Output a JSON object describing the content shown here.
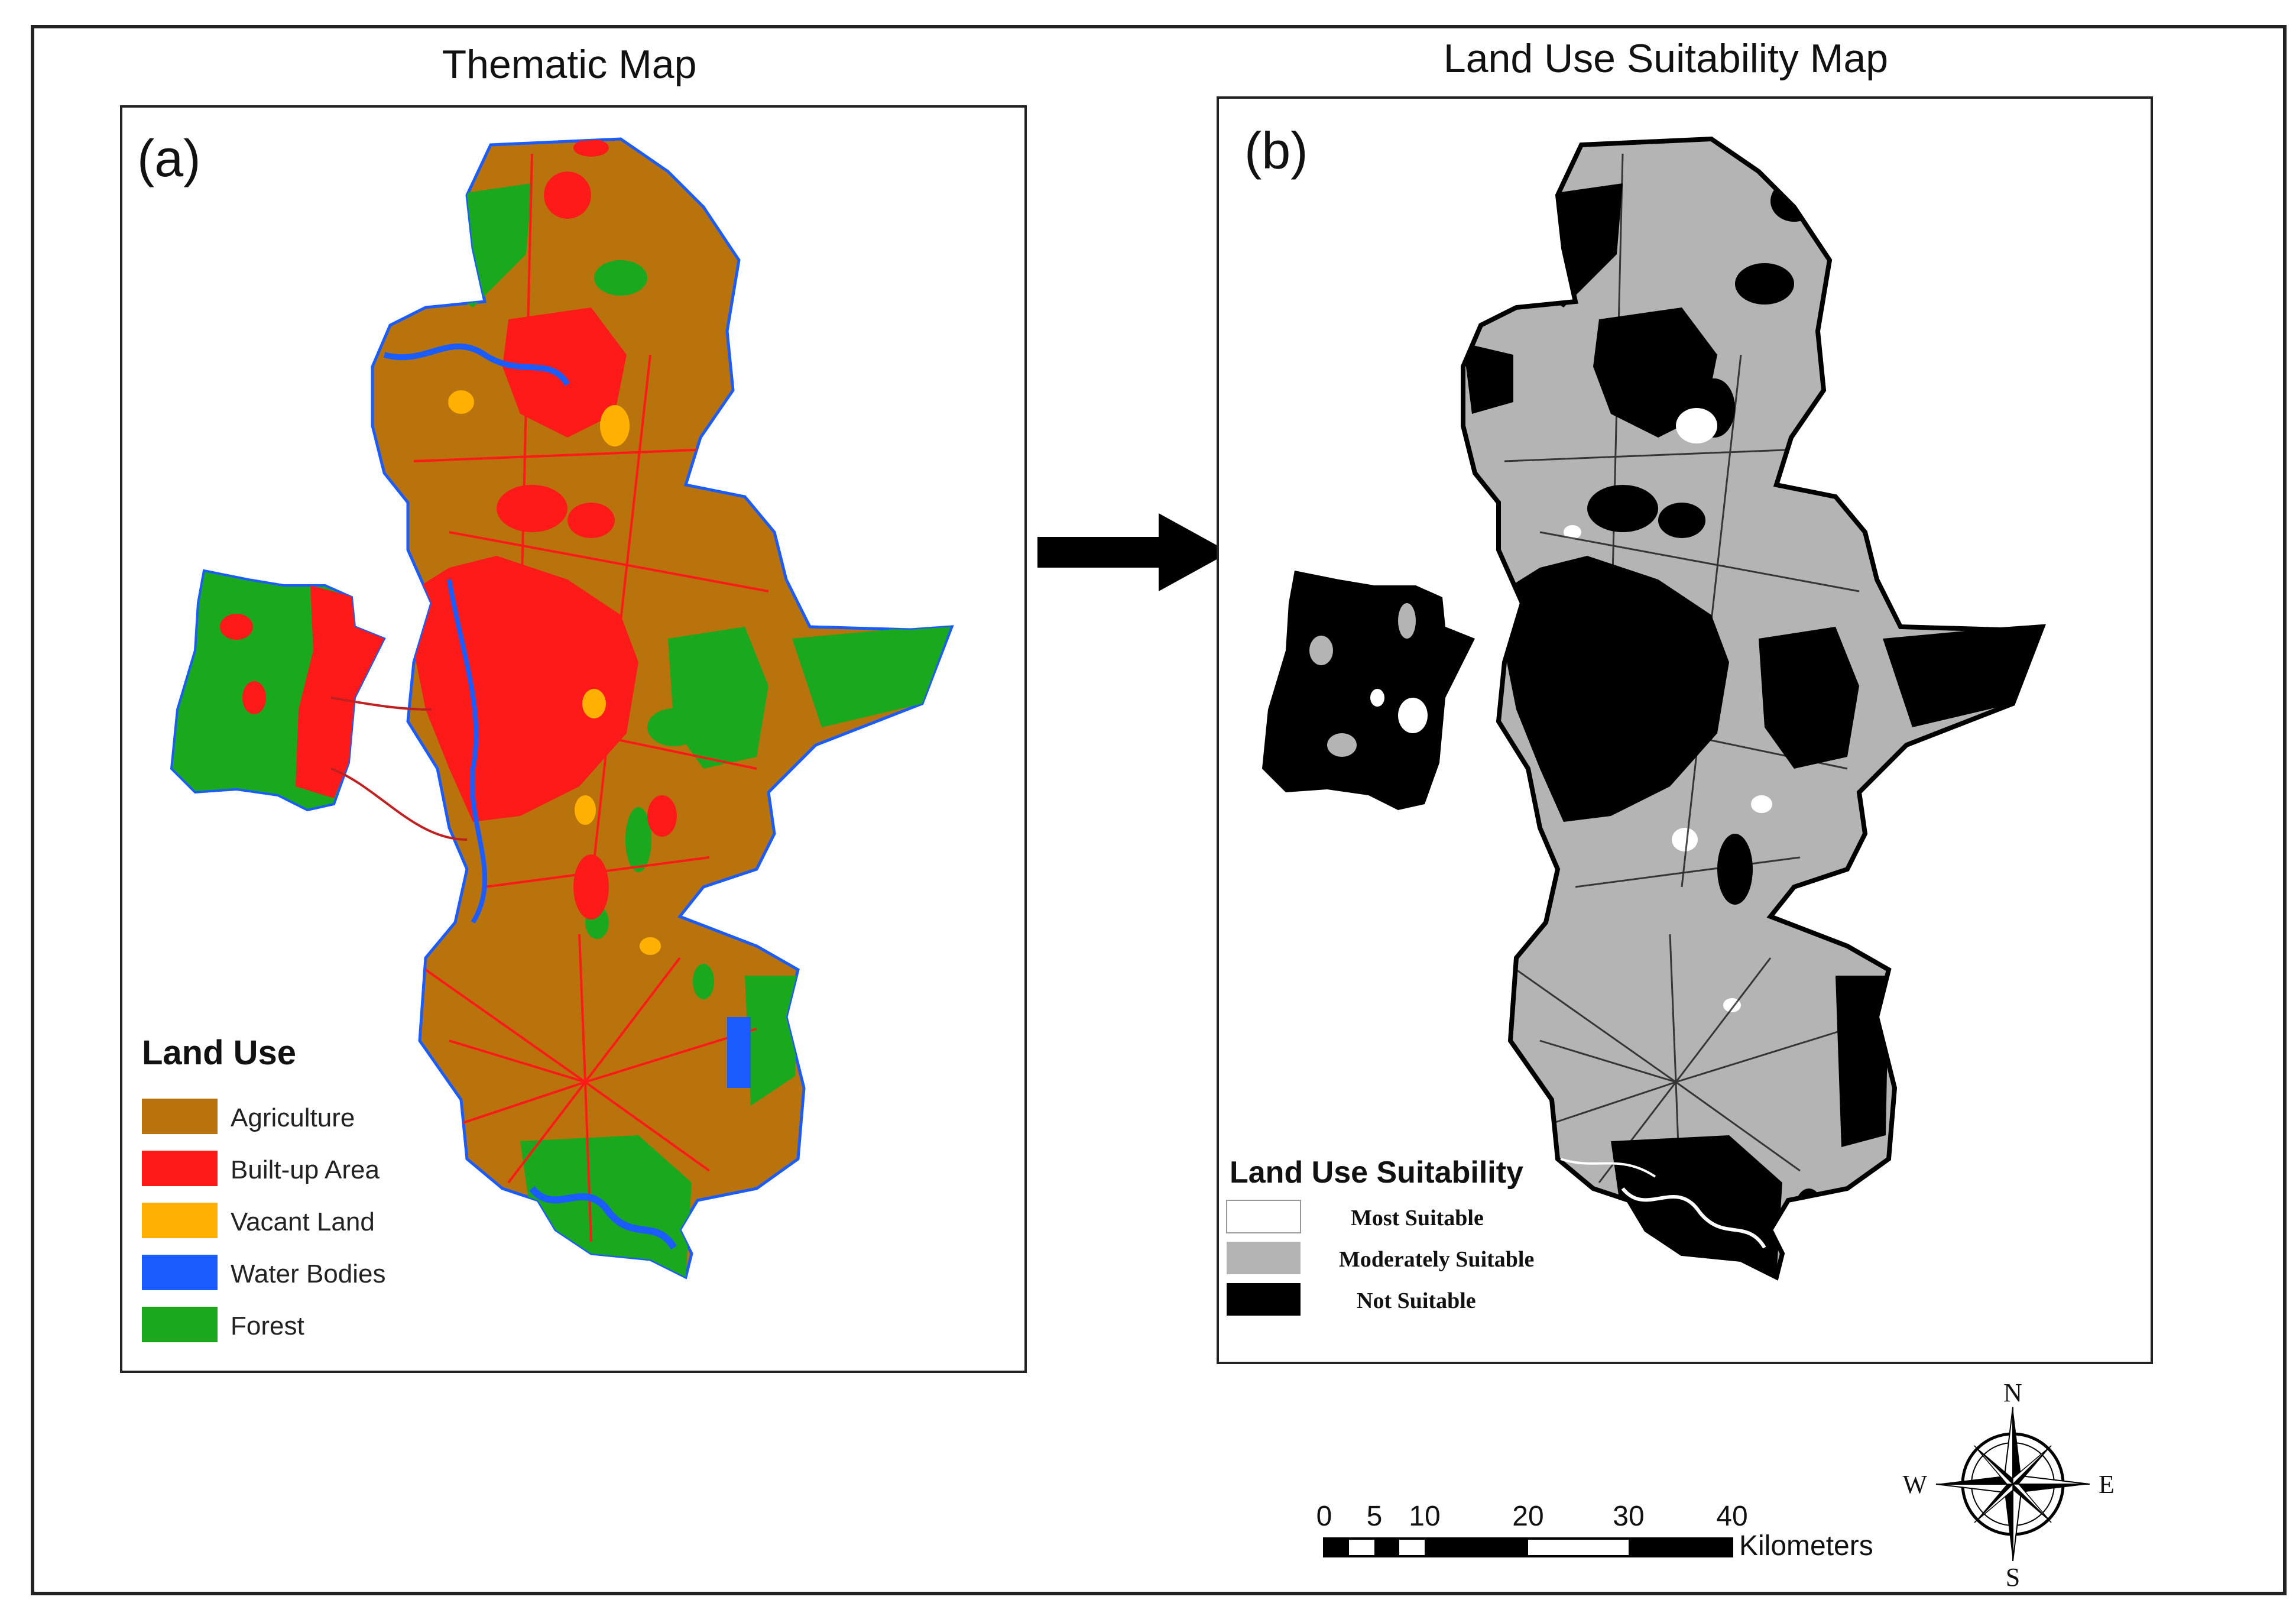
{
  "panels": {
    "left_title": "Thematic Map",
    "right_title": "Land Use Suitability Map",
    "left_label": "(a)",
    "right_label": "(b)"
  },
  "legend_land_use": {
    "title": "Land Use",
    "items": [
      {
        "label": "Agriculture",
        "color": "#b8730d"
      },
      {
        "label": "Built-up Area",
        "color": "#ff1a1a"
      },
      {
        "label": "Vacant Land",
        "color": "#ffb000"
      },
      {
        "label": "Water Bodies",
        "color": "#1a5cff"
      },
      {
        "label": "Forest",
        "color": "#19a81e"
      }
    ]
  },
  "legend_suitability": {
    "title": "Land Use Suitability",
    "items": [
      {
        "label": "Most Suitable",
        "color": "#ffffff"
      },
      {
        "label": "Moderately Suitable",
        "color": "#b4b4b4"
      },
      {
        "label": "Not Suitable",
        "color": "#000000"
      }
    ]
  },
  "scale_bar": {
    "ticks": [
      "0",
      "5",
      "10",
      "20",
      "30",
      "40"
    ],
    "unit": "Kilometers"
  },
  "compass": {
    "n": "N",
    "s": "S",
    "e": "E",
    "w": "W"
  },
  "colors": {
    "frame": "#222222",
    "agriculture": "#b8730d",
    "built_up": "#ff1a1a",
    "vacant": "#ffb000",
    "water": "#1a5cff",
    "forest": "#19a81e",
    "moderate": "#b4b4b4",
    "not_suitable": "#000000"
  }
}
